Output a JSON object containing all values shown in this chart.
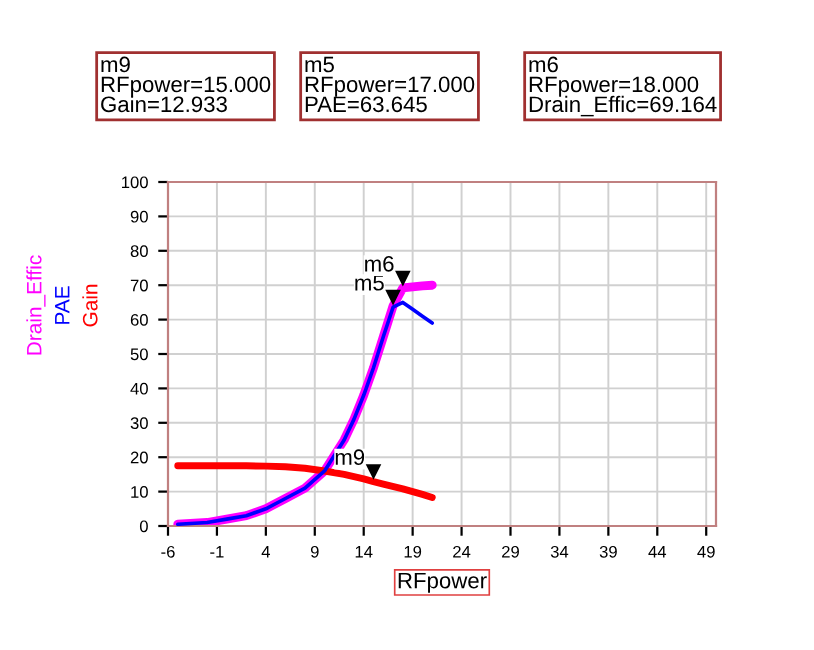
{
  "chart_data": {
    "type": "line",
    "xlabel": "RFpower",
    "xlim": [
      -6,
      50
    ],
    "xticks": [
      -6,
      -1,
      4,
      9,
      14,
      19,
      24,
      29,
      34,
      39,
      44,
      49
    ],
    "ylim": [
      0,
      100
    ],
    "yticks": [
      0,
      10,
      20,
      30,
      40,
      50,
      60,
      70,
      80,
      90,
      100
    ],
    "grid": true,
    "legend": "left",
    "marker": "none",
    "series": [
      {
        "name": "Drain_Effic",
        "color": "#ff00ff",
        "x": [
          -5,
          -2,
          0,
          2,
          4,
          6,
          8,
          10,
          12,
          13,
          14,
          15,
          16,
          17,
          18,
          19,
          20,
          21
        ],
        "values": [
          0.5,
          1,
          2,
          3,
          5,
          8,
          11,
          16,
          25,
          31,
          38,
          46,
          55,
          64,
          69.2,
          69.5,
          69.8,
          70
        ]
      },
      {
        "name": "PAE",
        "color": "#0000ff",
        "x": [
          -5,
          -2,
          0,
          2,
          4,
          6,
          8,
          10,
          12,
          13,
          14,
          15,
          16,
          17,
          18,
          19,
          20,
          21
        ],
        "values": [
          0.5,
          1,
          2,
          3,
          5,
          8,
          11,
          16,
          25,
          31,
          38,
          46,
          55,
          63.6,
          65,
          63,
          61,
          59
        ]
      },
      {
        "name": "Gain",
        "color": "#ff0000",
        "x": [
          -5,
          -2,
          0,
          2,
          4,
          6,
          8,
          10,
          12,
          14,
          15,
          16,
          18,
          20,
          21
        ],
        "values": [
          17.5,
          17.5,
          17.5,
          17.5,
          17.4,
          17.2,
          16.8,
          16,
          15,
          13.7,
          12.9,
          12.2,
          10.8,
          9.2,
          8.3
        ]
      }
    ],
    "annotations": [
      "m9\nRFpower=15.000\nGain=12.933",
      "m5\nRFpower=17.000\nPAE=63.645",
      "m6\nRFpower=18.000\nDrain_Effic=69.164",
      {
        "text": "m9",
        "x": 15,
        "y": 12.933
      },
      {
        "text": "m5",
        "x": 17,
        "y": 63.645
      },
      {
        "text": "m6",
        "x": 18,
        "y": 69.164
      }
    ]
  }
}
